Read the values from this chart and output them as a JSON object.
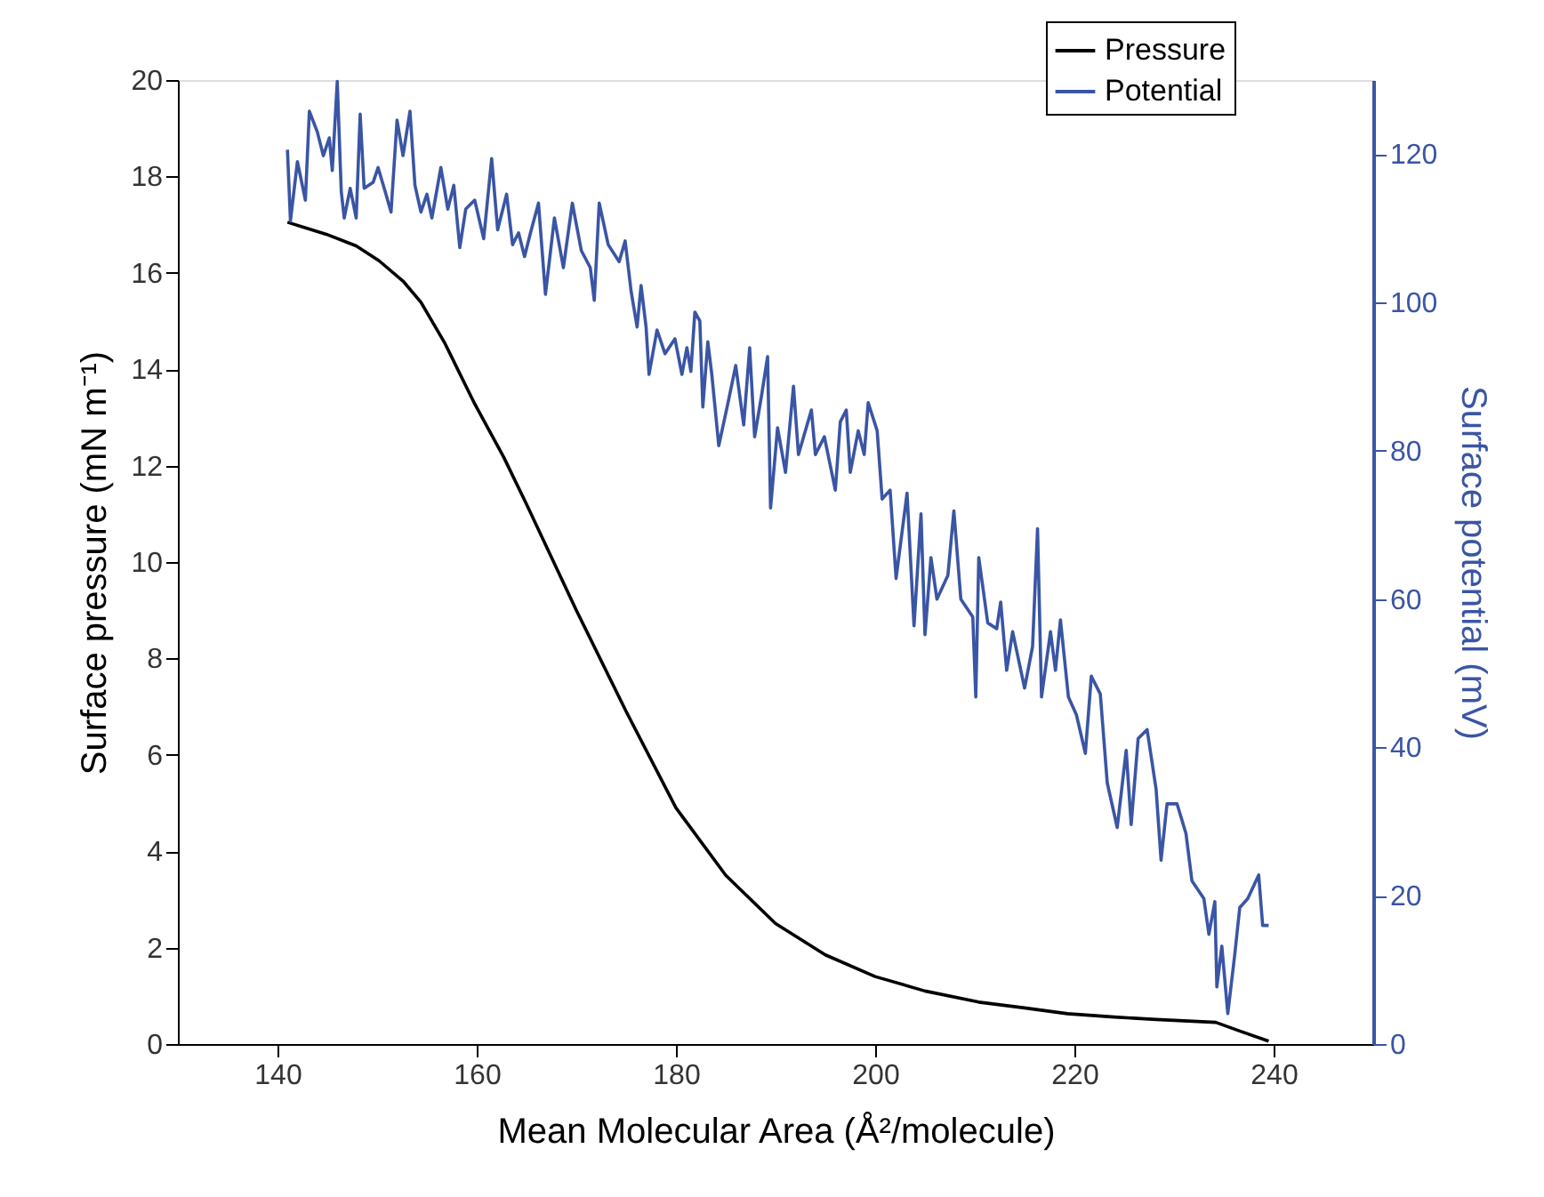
{
  "chart_data": {
    "type": "line",
    "xlabel": "Mean Molecular Area (Å²/molecule)",
    "ylabel": "Surface pressure (mN m⁻¹)",
    "y2label": "Surface potential (mV)",
    "xlim": [
      130,
      250
    ],
    "xticks": [
      140,
      160,
      180,
      200,
      220,
      240
    ],
    "ylim": [
      0,
      20
    ],
    "yticks": [
      0,
      2,
      4,
      6,
      8,
      10,
      12,
      14,
      16,
      18,
      20
    ],
    "y2lim": [
      0,
      130
    ],
    "y2ticks": [
      0,
      20,
      40,
      60,
      80,
      100,
      120
    ],
    "grid": false,
    "legend": "top right",
    "marker": "none",
    "line_style": "solid",
    "series": [
      {
        "name": "Pressure",
        "color": "#000000",
        "x": [
          141,
          144.9,
          147.9,
          150.2,
          152.6,
          154.4,
          156.8,
          159.8,
          162.7,
          165,
          170,
          175,
          180,
          185,
          190,
          195,
          200,
          205,
          210.4,
          215,
          219.3,
          224,
          228.2,
          234.2,
          236.6,
          239.5
        ],
        "values": [
          17.05,
          16.8,
          16.56,
          16.25,
          15.83,
          15.39,
          14.54,
          13.28,
          12.18,
          11.2,
          9.0,
          6.9,
          4.9,
          3.5,
          2.5,
          1.85,
          1.4,
          1.1,
          0.87,
          0.75,
          0.63,
          0.56,
          0.51,
          0.45,
          0.27,
          0.06
        ]
      },
      {
        "name": "Potential",
        "color": "#3a55a4",
        "axis": "y2",
        "x": [
          141.0,
          141.3,
          142.0,
          142.8,
          143.2,
          144.0,
          144.6,
          145.2,
          145.5,
          146.0,
          146.4,
          146.7,
          147.3,
          147.9,
          148.3,
          148.7,
          149.6,
          150.1,
          150.8,
          151.4,
          152.0,
          152.6,
          153.3,
          153.8,
          154.4,
          155.0,
          155.5,
          156.4,
          157.1,
          157.7,
          158.3,
          158.9,
          159.8,
          160.7,
          161.5,
          162.1,
          163.0,
          163.6,
          164.2,
          164.8,
          165.4,
          166.2,
          166.9,
          167.8,
          168.7,
          169.6,
          170.5,
          171.4,
          171.8,
          172.3,
          173.2,
          174.3,
          174.9,
          175.5,
          176.1,
          176.5,
          177.0,
          177.3,
          178.1,
          178.9,
          179.9,
          180.6,
          181.1,
          181.5,
          181.9,
          182.4,
          182.7,
          183.2,
          183.6,
          184.3,
          185.2,
          186.0,
          186.8,
          187.4,
          187.9,
          188.6,
          189.2,
          189.5,
          190.2,
          191.0,
          191.8,
          192.3,
          193.6,
          194.0,
          194.9,
          196.0,
          196.5,
          197.1,
          197.5,
          198.3,
          198.9,
          199.3,
          200.2,
          200.7,
          201.5,
          202.1,
          203.2,
          203.9,
          204.6,
          205.0,
          205.6,
          206.2,
          207.3,
          207.9,
          208.6,
          209.8,
          210.1,
          210.4,
          211.3,
          212.2,
          212.6,
          213.2,
          213.8,
          215.0,
          215.8,
          216.3,
          216.7,
          217.6,
          218.1,
          218.6,
          219.4,
          220.2,
          221.1,
          221.7,
          222.6,
          223.3,
          224.3,
          225.2,
          225.7,
          226.4,
          227.3,
          228.2,
          228.7,
          229.3,
          230.3,
          231.2,
          231.8,
          233.0,
          233.5,
          234.1,
          234.3,
          234.8,
          235.4,
          236.1,
          236.6,
          237.4,
          238.5,
          238.9,
          239.5
        ],
        "values": [
          120.6,
          111.0,
          119.0,
          113.8,
          125.8,
          123.0,
          119.8,
          122.2,
          117.8,
          129.8,
          115.0,
          111.4,
          115.4,
          111.4,
          125.4,
          115.4,
          116.2,
          118.2,
          115.0,
          112.2,
          124.6,
          119.8,
          125.8,
          115.8,
          112.2,
          114.6,
          111.4,
          118.2,
          112.6,
          115.8,
          107.4,
          112.6,
          113.8,
          108.6,
          119.4,
          109.8,
          114.6,
          107.8,
          109.4,
          106.2,
          109.4,
          113.4,
          101.1,
          111.4,
          104.7,
          113.4,
          107.0,
          104.7,
          100.3,
          113.4,
          107.8,
          105.5,
          108.3,
          101.5,
          96.7,
          102.3,
          96.7,
          90.3,
          96.3,
          93.1,
          95.1,
          90.3,
          93.9,
          90.7,
          98.7,
          97.5,
          85.9,
          94.7,
          90.3,
          80.7,
          86.3,
          91.5,
          83.5,
          93.9,
          81.9,
          87.5,
          92.7,
          72.3,
          83.1,
          77.1,
          88.7,
          79.5,
          85.5,
          79.5,
          81.9,
          74.7,
          83.9,
          85.5,
          77.1,
          82.7,
          79.5,
          86.5,
          82.7,
          73.5,
          74.7,
          62.8,
          74.3,
          56.4,
          71.5,
          55.2,
          65.6,
          60.0,
          63.2,
          71.9,
          60.0,
          57.6,
          46.8,
          65.6,
          56.8,
          56.0,
          59.6,
          50.4,
          55.6,
          48.0,
          53.6,
          69.5,
          46.8,
          55.6,
          50.4,
          57.2,
          46.8,
          44.4,
          39.2,
          49.6,
          47.2,
          35.2,
          29.2,
          39.6,
          29.6,
          41.2,
          42.4,
          34.4,
          24.8,
          32.4,
          32.4,
          28.4,
          22.0,
          19.6,
          14.8,
          19.2,
          7.7,
          13.2,
          4.1,
          12.1,
          18.4,
          19.6,
          22.8,
          16.0,
          16.0
        ]
      }
    ]
  }
}
